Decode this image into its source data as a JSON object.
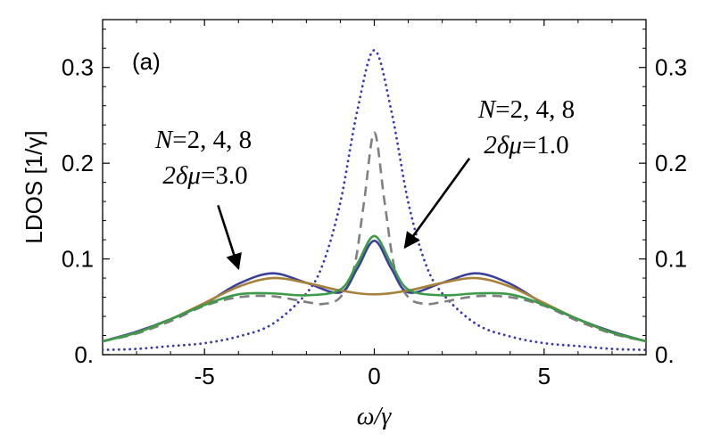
{
  "chart_data": {
    "type": "line",
    "panel_label": "(a)",
    "xlabel": "ω/γ",
    "ylabel": "LDOS [1/γ]",
    "xlim": [
      -8,
      8
    ],
    "ylim": [
      0,
      0.35
    ],
    "x_ticks": [
      {
        "value": -5,
        "label": "-5"
      },
      {
        "value": 0,
        "label": "0"
      },
      {
        "value": 5,
        "label": "5"
      }
    ],
    "y_ticks": [
      {
        "value": 0,
        "label": "0."
      },
      {
        "value": 0.1,
        "label": "0.1"
      },
      {
        "value": 0.2,
        "label": "0.2"
      },
      {
        "value": 0.3,
        "label": "0.3"
      }
    ],
    "series": [
      {
        "name": "dotted reference",
        "color": "#3a3aa8",
        "style": "dotted",
        "x": [
          -8,
          -7,
          -6,
          -5,
          -4,
          -3,
          -2,
          -1.5,
          -1,
          -0.5,
          0,
          0.5,
          1,
          1.5,
          2,
          3,
          4,
          5,
          6,
          7,
          8
        ],
        "values": [
          0.005,
          0.006,
          0.009,
          0.012,
          0.019,
          0.032,
          0.064,
          0.096,
          0.159,
          0.255,
          0.318,
          0.255,
          0.159,
          0.096,
          0.064,
          0.032,
          0.019,
          0.012,
          0.009,
          0.006,
          0.005
        ]
      },
      {
        "name": "dashed reference",
        "color": "#808080",
        "style": "dashed",
        "x": [
          -8,
          -7,
          -6,
          -5,
          -4,
          -3,
          -2,
          -1.5,
          -1,
          -0.6,
          -0.3,
          0,
          0.3,
          0.6,
          1,
          1.5,
          2,
          3,
          4,
          5,
          6,
          7,
          8
        ],
        "values": [
          0.014,
          0.022,
          0.035,
          0.051,
          0.06,
          0.061,
          0.055,
          0.053,
          0.06,
          0.09,
          0.16,
          0.232,
          0.16,
          0.09,
          0.06,
          0.053,
          0.055,
          0.061,
          0.06,
          0.051,
          0.035,
          0.022,
          0.014
        ]
      },
      {
        "name": "N=2",
        "color": "#3b3f9a",
        "style": "solid",
        "x": [
          -8,
          -7,
          -6,
          -5,
          -4,
          -3,
          -2,
          -1,
          -0.5,
          0,
          0.5,
          1,
          2,
          3,
          4,
          5,
          6,
          7,
          8
        ],
        "values": [
          0.014,
          0.024,
          0.037,
          0.053,
          0.074,
          0.085,
          0.075,
          0.065,
          0.09,
          0.119,
          0.09,
          0.065,
          0.075,
          0.085,
          0.074,
          0.053,
          0.037,
          0.024,
          0.014
        ]
      },
      {
        "name": "N=4",
        "color": "#a5813a",
        "style": "solid",
        "x": [
          -8,
          -7,
          -6,
          -5,
          -4,
          -3,
          -2,
          -1,
          0,
          1,
          2,
          3,
          4,
          5,
          6,
          7,
          8
        ],
        "values": [
          0.014,
          0.023,
          0.037,
          0.054,
          0.071,
          0.08,
          0.075,
          0.067,
          0.063,
          0.067,
          0.075,
          0.08,
          0.071,
          0.054,
          0.037,
          0.023,
          0.014
        ]
      },
      {
        "name": "N=8",
        "color": "#3c9a48",
        "style": "solid",
        "x": [
          -8,
          -7,
          -6,
          -5,
          -4,
          -3,
          -2,
          -1,
          -0.5,
          0,
          0.5,
          1,
          2,
          3,
          4,
          5,
          6,
          7,
          8
        ],
        "values": [
          0.014,
          0.023,
          0.037,
          0.052,
          0.063,
          0.064,
          0.062,
          0.068,
          0.095,
          0.124,
          0.095,
          0.068,
          0.062,
          0.064,
          0.063,
          0.052,
          0.037,
          0.023,
          0.014
        ]
      }
    ],
    "annotations": [
      {
        "line1_var": "N",
        "line1_rest": "=2, 4, 8",
        "line2_math": "2δμ",
        "line2_rest": "=3.0",
        "arrow_from": [
          -4.6,
          0.156
        ],
        "arrow_to": [
          -4.0,
          0.09
        ]
      },
      {
        "line1_var": "N",
        "line1_rest": "=2, 4, 8",
        "line2_math": "2δμ",
        "line2_rest": "=1.0",
        "arrow_from": [
          2.8,
          0.205
        ],
        "arrow_to": [
          0.9,
          0.112
        ]
      }
    ]
  }
}
